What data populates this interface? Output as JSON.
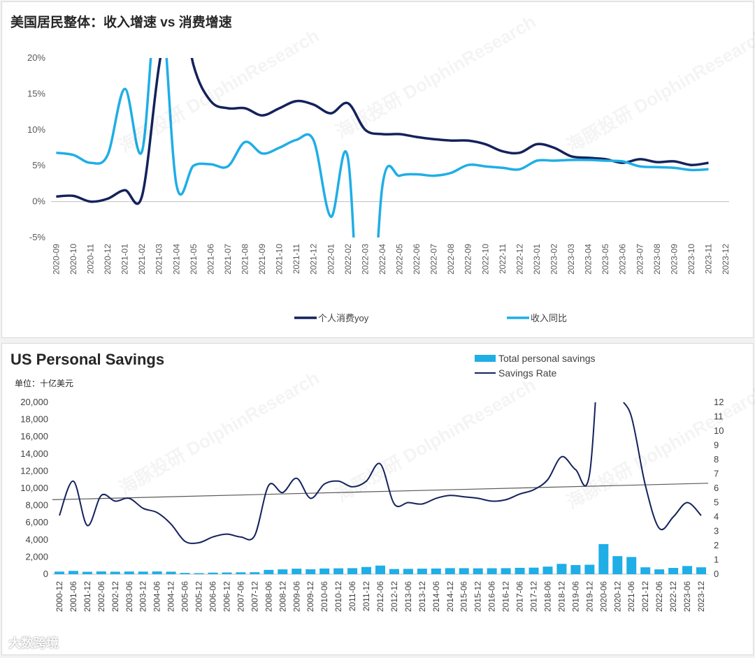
{
  "panel1": {
    "title": "美国居民整体：收入增速 vs 消费增速",
    "chart_data": {
      "type": "line",
      "x": [
        "2020-09",
        "2020-10",
        "2020-11",
        "2020-12",
        "2021-01",
        "2021-02",
        "2021-03",
        "2021-04",
        "2021-05",
        "2021-06",
        "2021-07",
        "2021-08",
        "2021-09",
        "2021-10",
        "2021-11",
        "2021-12",
        "2022-01",
        "2022-02",
        "2022-03",
        "2022-04",
        "2022-05",
        "2022-06",
        "2022-07",
        "2022-08",
        "2022-09",
        "2022-10",
        "2022-11",
        "2022-12",
        "2023-01",
        "2023-02",
        "2023-03",
        "2023-04",
        "2023-05",
        "2023-06",
        "2023-07",
        "2023-08",
        "2023-09",
        "2023-10",
        "2023-11",
        "2023-12"
      ],
      "ylim": [
        -5,
        20
      ],
      "yticks": [
        "-5%",
        "0%",
        "5%",
        "10%",
        "15%",
        "20%"
      ],
      "series": [
        {
          "name": "个人消费yoy",
          "color": "#14225c",
          "values": [
            0.7,
            0.8,
            0.0,
            0.4,
            1.6,
            0.8,
            19.0,
            31.0,
            19.0,
            14.0,
            13.0,
            13.0,
            12.0,
            13.0,
            14.0,
            13.5,
            12.3,
            13.7,
            10.0,
            9.4,
            9.4,
            9.0,
            8.7,
            8.5,
            8.5,
            8.0,
            7.0,
            6.8,
            8.0,
            7.5,
            6.3,
            6.1,
            5.9,
            5.4,
            5.9,
            5.5,
            5.6,
            5.1,
            5.4,
            null
          ]
        },
        {
          "name": "收入同比",
          "color": "#1faee6",
          "values": [
            6.8,
            6.5,
            5.4,
            6.5,
            15.7,
            7.0,
            30.0,
            2.4,
            5.0,
            5.2,
            4.9,
            8.3,
            6.7,
            7.5,
            8.6,
            8.5,
            -2.1,
            6.0,
            -30.0,
            2.1,
            3.6,
            3.8,
            3.6,
            4.0,
            5.1,
            4.9,
            4.7,
            4.5,
            5.7,
            5.7,
            5.8,
            5.8,
            5.7,
            5.6,
            4.9,
            4.8,
            4.7,
            4.4,
            4.5,
            null
          ]
        }
      ]
    }
  },
  "panel2": {
    "title": "US Personal Savings",
    "unit": "单位：十亿美元",
    "chart_data": {
      "type": "bar+line",
      "xticks": [
        "2000-12",
        "2001-06",
        "2001-12",
        "2002-06",
        "2002-12",
        "2003-06",
        "2003-12",
        "2004-06",
        "2004-12",
        "2005-06",
        "2005-12",
        "2006-06",
        "2006-12",
        "2007-06",
        "2007-12",
        "2008-06",
        "2008-12",
        "2009-06",
        "2009-12",
        "2010-06",
        "2010-12",
        "2011-06",
        "2011-12",
        "2012-06",
        "2012-12",
        "2013-06",
        "2013-12",
        "2014-06",
        "2014-12",
        "2015-06",
        "2015-12",
        "2016-06",
        "2016-12",
        "2017-06",
        "2017-12",
        "2018-06",
        "2018-12",
        "2019-06",
        "2019-12",
        "2020-06",
        "2020-12",
        "2021-06",
        "2021-12",
        "2022-06",
        "2022-12",
        "2023-06",
        "2023-12"
      ],
      "ylim_left": [
        0,
        20000
      ],
      "yticks_left": [
        "0",
        "2,000",
        "4,000",
        "6,000",
        "8,000",
        "10,000",
        "12,000",
        "14,000",
        "16,000",
        "18,000",
        "20,000"
      ],
      "ylim_right": [
        0,
        12
      ],
      "yticks_right": [
        "0",
        "1",
        "2",
        "3",
        "4",
        "5",
        "6",
        "7",
        "8",
        "9",
        "10",
        "11",
        "12"
      ],
      "legend": {
        "bars": "Total personal savings",
        "line": "Savings Rate"
      },
      "savings_rate_semiannual": [
        4.1,
        6.5,
        3.4,
        5.5,
        5.1,
        5.3,
        4.6,
        4.3,
        3.5,
        2.3,
        2.2,
        2.6,
        2.8,
        2.6,
        2.7,
        6.2,
        5.7,
        6.7,
        5.3,
        6.3,
        6.5,
        6.1,
        6.5,
        7.7,
        4.9,
        5.0,
        4.9,
        5.3,
        5.5,
        5.4,
        5.3,
        5.1,
        5.2,
        5.6,
        5.9,
        6.6,
        8.2,
        7.3,
        7.0,
        19.0,
        13.0,
        11.0,
        6.2,
        3.2,
        4.0,
        5.0,
        4.1
      ],
      "total_savings_semiannual": [
        300,
        380,
        280,
        320,
        290,
        310,
        300,
        320,
        290,
        150,
        120,
        180,
        200,
        220,
        230,
        500,
        560,
        640,
        570,
        660,
        680,
        700,
        840,
        1000,
        600,
        620,
        640,
        660,
        700,
        700,
        680,
        690,
        700,
        740,
        760,
        880,
        1200,
        1060,
        1100,
        3500,
        2100,
        2000,
        800,
        560,
        730,
        950,
        800
      ],
      "trend_rate": [
        5.2,
        6.35
      ]
    }
  },
  "watermark": "海豚投研 DolphinResearch",
  "brand": "大数跨境"
}
